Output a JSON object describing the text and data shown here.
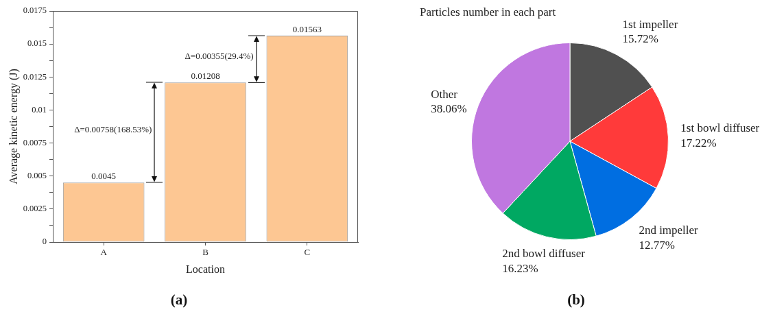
{
  "chart_data": [
    {
      "type": "bar",
      "xlabel": "Location",
      "ylabel": "Average kinetic energy (J)",
      "categories": [
        "A",
        "B",
        "C"
      ],
      "values": [
        0.0045,
        0.01208,
        0.01563
      ],
      "color": "#fdc793",
      "ylim": [
        0,
        0.0175
      ],
      "yticks": [
        0,
        {
          "value": 0.00125,
          "label": null
        },
        0.0025,
        {
          "value": 0.00375,
          "label": null
        },
        0.005,
        {
          "value": 0.00625,
          "label": null
        },
        0.0075,
        {
          "value": 0.00875,
          "label": null
        },
        0.01,
        {
          "value": 0.01125,
          "label": null
        },
        0.0125,
        {
          "value": 0.01375,
          "label": null
        },
        0.015,
        {
          "value": 0.01625,
          "label": null
        },
        0.0175
      ],
      "grid": false,
      "legend": false,
      "data_labels": true,
      "annotations": [
        "Δ=0.00758(168.53%)",
        "Δ=0.00355(29.4%)",
        "(a)"
      ]
    },
    {
      "type": "pie",
      "title": "Particles number in each part",
      "categories": [
        "1st impeller",
        "1st bowl diffuser",
        "2nd impeller",
        "2nd bowl diffuser",
        "Other"
      ],
      "values": [
        15.72,
        17.22,
        12.77,
        16.23,
        38.06
      ],
      "colors": [
        "#505050",
        "#ff3a3a",
        "#006ee1",
        "#00a862",
        "#c077e0"
      ],
      "value_labels": [
        "15.72%",
        "17.22%",
        "12.77%",
        "16.23%",
        "38.06%"
      ],
      "legend": false,
      "annotations": [
        "(b)"
      ]
    }
  ]
}
